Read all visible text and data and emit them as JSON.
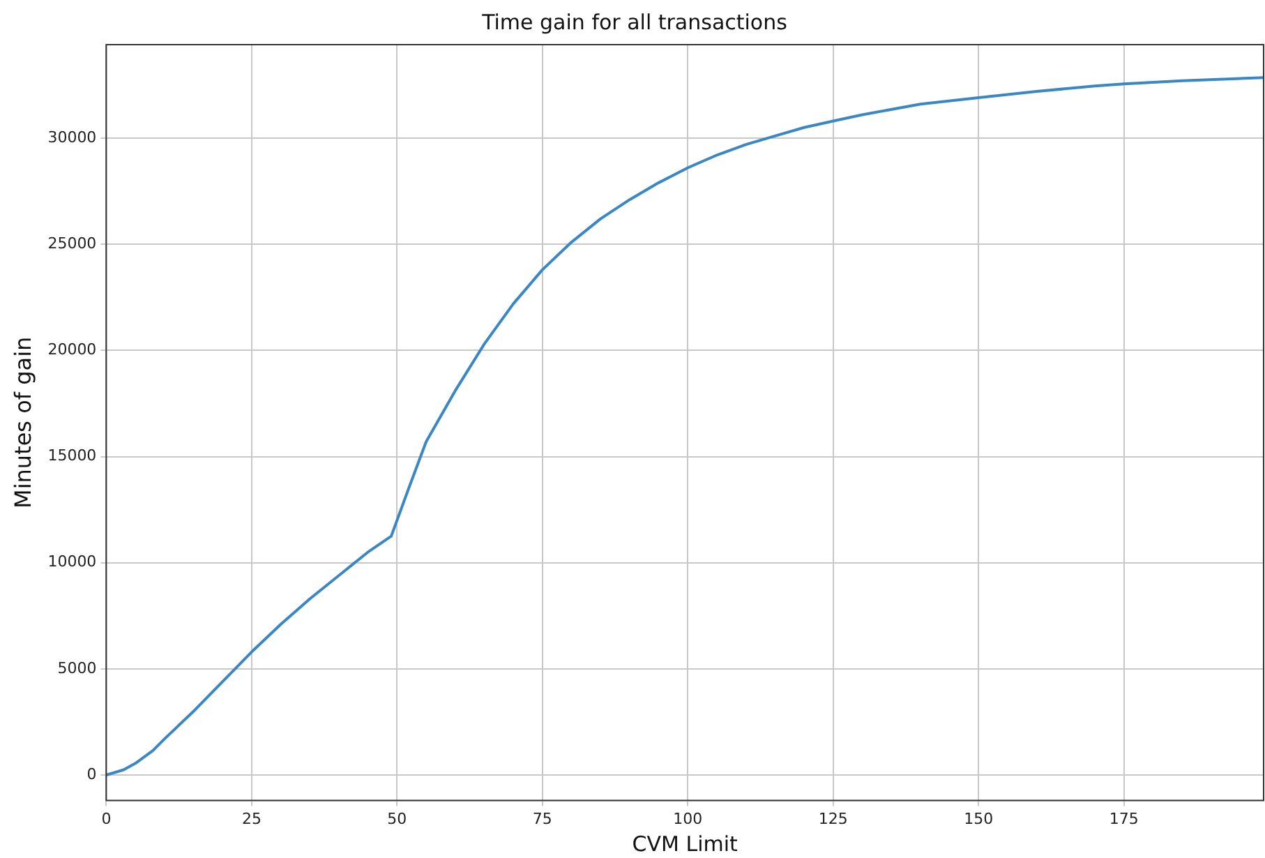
{
  "chart_data": {
    "type": "line",
    "title": "Time gain for all transactions",
    "xlabel": "CVM Limit",
    "ylabel": "Minutes of gain",
    "x": [
      0,
      3,
      5,
      8,
      10,
      15,
      20,
      25,
      30,
      35,
      40,
      45,
      49,
      52,
      55,
      60,
      65,
      70,
      75,
      80,
      85,
      90,
      95,
      100,
      105,
      110,
      115,
      120,
      125,
      130,
      140,
      150,
      160,
      170,
      175,
      185,
      199
    ],
    "series": [
      {
        "color": "#3a87c4",
        "values": [
          0,
          250,
          550,
          1150,
          1700,
          3000,
          4400,
          5800,
          7100,
          8300,
          9400,
          10500,
          11250,
          13500,
          15700,
          18100,
          20300,
          22200,
          23800,
          25100,
          26200,
          27100,
          27900,
          28600,
          29200,
          29700,
          30100,
          30500,
          30800,
          31100,
          31600,
          31900,
          32200,
          32450,
          32550,
          32700,
          32850
        ]
      }
    ],
    "xlim": [
      0,
      199
    ],
    "xticks": [
      0,
      25,
      50,
      75,
      100,
      125,
      150,
      175
    ],
    "ylim": [
      -1200,
      34400
    ],
    "yticks": [
      0,
      5000,
      10000,
      15000,
      20000,
      25000,
      30000
    ],
    "grid": true,
    "legend": false,
    "marker": "none",
    "line_style": "solid"
  }
}
